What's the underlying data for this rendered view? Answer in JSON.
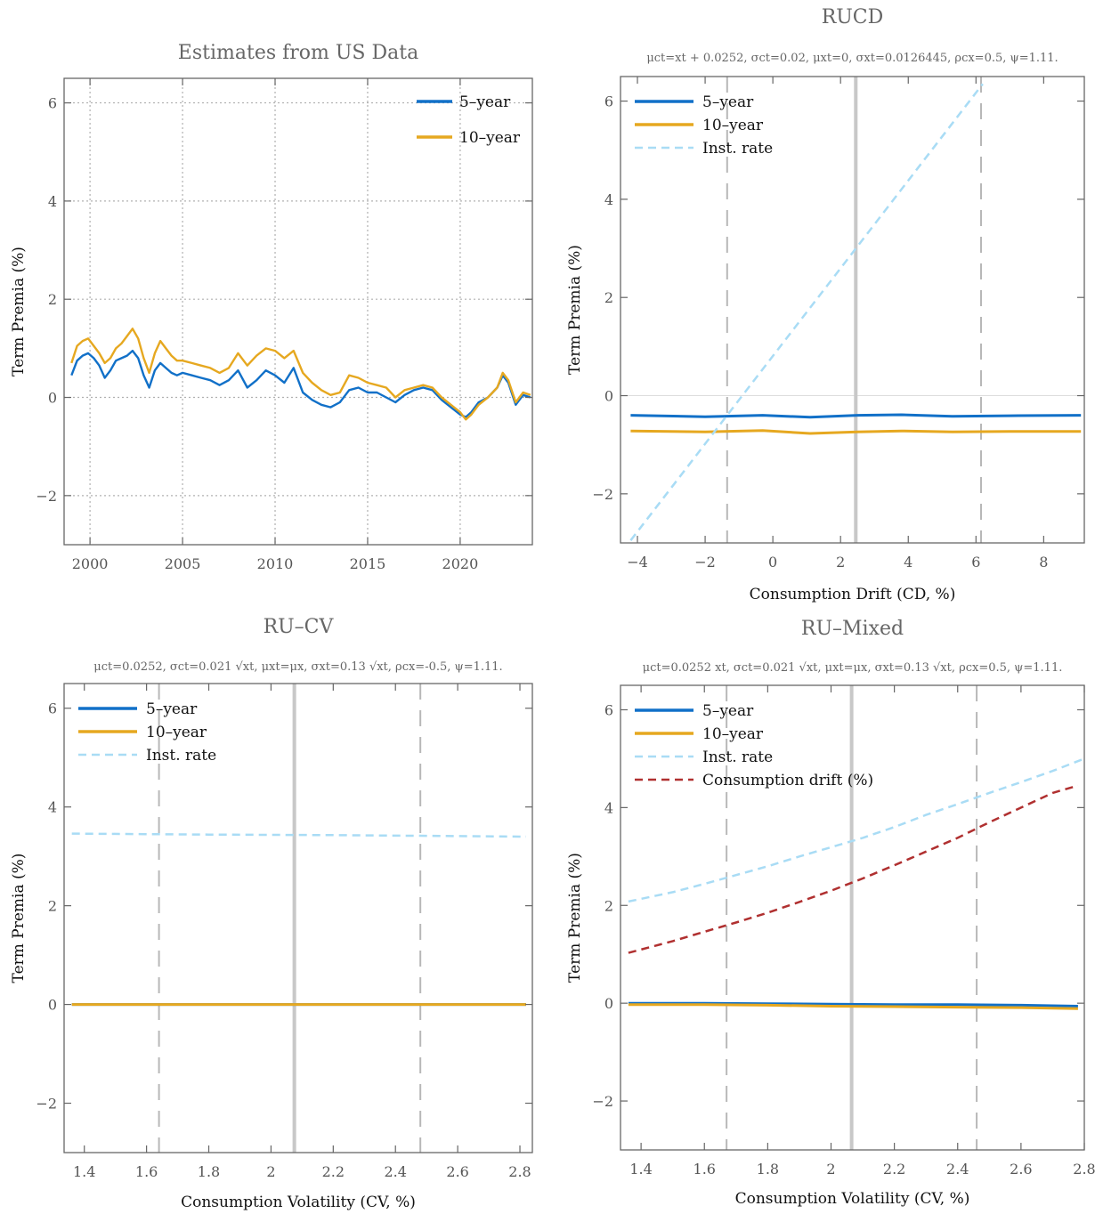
{
  "chart_data": [
    {
      "type": "line",
      "title": "Estimates from US Data",
      "subtitle": "",
      "xlabel": "",
      "ylabel": "Term Premia (%)",
      "xlim": [
        1998.6,
        2023.9
      ],
      "ylim": [
        -3,
        6.5
      ],
      "xticks": [
        2000,
        2005,
        2010,
        2015,
        2020
      ],
      "yticks": [
        -2,
        0,
        2,
        4,
        6
      ],
      "grid": "dotted",
      "legend": "top-right",
      "series": [
        {
          "name": "5–year",
          "color": "#1170c8",
          "x": [
            1999.0,
            1999.3,
            1999.6,
            1999.9,
            2000.2,
            2000.5,
            2000.8,
            2001.1,
            2001.4,
            2001.7,
            2002.0,
            2002.3,
            2002.6,
            2002.9,
            2003.2,
            2003.5,
            2003.8,
            2004.1,
            2004.4,
            2004.7,
            2005.0,
            2005.5,
            2006.0,
            2006.5,
            2007.0,
            2007.5,
            2008.0,
            2008.5,
            2009.0,
            2009.5,
            2010.0,
            2010.5,
            2011.0,
            2011.5,
            2012.0,
            2012.5,
            2013.0,
            2013.5,
            2014.0,
            2014.5,
            2015.0,
            2015.5,
            2016.0,
            2016.5,
            2017.0,
            2017.5,
            2018.0,
            2018.5,
            2019.0,
            2019.5,
            2020.0,
            2020.3,
            2020.6,
            2021.0,
            2021.5,
            2022.0,
            2022.3,
            2022.6,
            2023.0,
            2023.4,
            2023.8
          ],
          "values": [
            0.45,
            0.75,
            0.85,
            0.9,
            0.8,
            0.65,
            0.4,
            0.55,
            0.75,
            0.8,
            0.85,
            0.95,
            0.8,
            0.45,
            0.2,
            0.55,
            0.7,
            0.6,
            0.5,
            0.45,
            0.5,
            0.45,
            0.4,
            0.35,
            0.25,
            0.35,
            0.55,
            0.2,
            0.35,
            0.55,
            0.45,
            0.3,
            0.6,
            0.1,
            -0.05,
            -0.15,
            -0.2,
            -0.1,
            0.15,
            0.2,
            0.1,
            0.1,
            0.0,
            -0.1,
            0.05,
            0.15,
            0.2,
            0.15,
            -0.05,
            -0.2,
            -0.35,
            -0.4,
            -0.3,
            -0.1,
            0.0,
            0.2,
            0.45,
            0.3,
            -0.15,
            0.05,
            0.0
          ]
        },
        {
          "name": "10–year",
          "color": "#e6a820",
          "x": [
            1999.0,
            1999.3,
            1999.6,
            1999.9,
            2000.2,
            2000.5,
            2000.8,
            2001.1,
            2001.4,
            2001.7,
            2002.0,
            2002.3,
            2002.6,
            2002.9,
            2003.2,
            2003.5,
            2003.8,
            2004.1,
            2004.4,
            2004.7,
            2005.0,
            2005.5,
            2006.0,
            2006.5,
            2007.0,
            2007.5,
            2008.0,
            2008.5,
            2009.0,
            2009.5,
            2010.0,
            2010.5,
            2011.0,
            2011.5,
            2012.0,
            2012.5,
            2013.0,
            2013.5,
            2014.0,
            2014.5,
            2015.0,
            2015.5,
            2016.0,
            2016.5,
            2017.0,
            2017.5,
            2018.0,
            2018.5,
            2019.0,
            2019.5,
            2020.0,
            2020.3,
            2020.6,
            2021.0,
            2021.5,
            2022.0,
            2022.3,
            2022.6,
            2023.0,
            2023.4,
            2023.8
          ],
          "values": [
            0.7,
            1.05,
            1.15,
            1.2,
            1.05,
            0.9,
            0.7,
            0.8,
            1.0,
            1.1,
            1.25,
            1.4,
            1.2,
            0.8,
            0.5,
            0.9,
            1.15,
            1.0,
            0.85,
            0.75,
            0.75,
            0.7,
            0.65,
            0.6,
            0.5,
            0.6,
            0.9,
            0.65,
            0.85,
            1.0,
            0.95,
            0.8,
            0.95,
            0.5,
            0.3,
            0.15,
            0.05,
            0.1,
            0.45,
            0.4,
            0.3,
            0.25,
            0.2,
            0.0,
            0.15,
            0.2,
            0.25,
            0.2,
            0.0,
            -0.15,
            -0.3,
            -0.45,
            -0.35,
            -0.15,
            0.0,
            0.2,
            0.5,
            0.35,
            -0.1,
            0.1,
            0.05
          ]
        }
      ]
    },
    {
      "type": "line",
      "title": "RUCD",
      "subtitle": "μct=xt + 0.0252, σct=0.02, μxt=0, σxt=0.0126445, ρcx=0.5, ψ=1.11.",
      "xlabel": "Consumption Drift (CD, %)",
      "ylabel": "Term Premia (%)",
      "xlim": [
        -4.5,
        9.2
      ],
      "ylim": [
        -3,
        6.5
      ],
      "xticks": [
        -4,
        -2,
        0,
        2,
        4,
        6,
        8
      ],
      "yticks": [
        -2,
        0,
        2,
        4,
        6
      ],
      "vlines_dashed": [
        -1.35,
        6.15
      ],
      "vline_solid": 2.45,
      "zero_line": true,
      "legend": "top-left",
      "series": [
        {
          "name": "5–year",
          "color": "#1170c8",
          "style": "solid",
          "x": [
            -4.2,
            -2.0,
            -0.3,
            1.1,
            2.5,
            3.8,
            5.3,
            7.0,
            9.1
          ],
          "values": [
            -0.4,
            -0.43,
            -0.4,
            -0.44,
            -0.4,
            -0.39,
            -0.42,
            -0.41,
            -0.4
          ]
        },
        {
          "name": "10–year",
          "color": "#e6a820",
          "style": "solid",
          "x": [
            -4.2,
            -2.0,
            -0.3,
            1.1,
            2.5,
            3.8,
            5.3,
            7.0,
            9.1
          ],
          "values": [
            -0.72,
            -0.74,
            -0.71,
            -0.77,
            -0.74,
            -0.72,
            -0.74,
            -0.73,
            -0.73
          ]
        },
        {
          "name": "Inst. rate",
          "color": "#a9dcf5",
          "style": "dashed",
          "x": [
            -4.2,
            6.2
          ],
          "values": [
            -2.95,
            6.35
          ]
        }
      ]
    },
    {
      "type": "line",
      "title": "RU–CV",
      "subtitle": "μct=0.0252, σct=0.021 √xt, μxt=μx, σxt=0.13 √xt, ρcx=-0.5, ψ=1.11.",
      "xlabel": "Consumption Volatility (CV, %)",
      "ylabel": "Term Premia (%)",
      "xlim": [
        1.335,
        2.84
      ],
      "ylim": [
        -3,
        6.5
      ],
      "xticks": [
        1.4,
        1.6,
        1.8,
        2.0,
        2.2,
        2.4,
        2.6,
        2.8
      ],
      "yticks": [
        -2,
        0,
        2,
        4,
        6
      ],
      "vlines_dashed": [
        1.64,
        2.48
      ],
      "vline_solid": 2.075,
      "legend": "top-left",
      "series": [
        {
          "name": "5–year",
          "color": "#1170c8",
          "style": "solid",
          "x": [
            1.36,
            2.82
          ],
          "values": [
            0.0,
            0.0
          ]
        },
        {
          "name": "10–year",
          "color": "#e6a820",
          "style": "solid",
          "x": [
            1.36,
            2.82
          ],
          "values": [
            0.0,
            0.0
          ]
        },
        {
          "name": "Inst. rate",
          "color": "#a9dcf5",
          "style": "dashed",
          "x": [
            1.36,
            1.8,
            2.2,
            2.6,
            2.82
          ],
          "values": [
            3.46,
            3.44,
            3.43,
            3.41,
            3.4
          ]
        }
      ]
    },
    {
      "type": "line",
      "title": "RU–Mixed",
      "subtitle": "μct=0.0252 xt, σct=0.021 √xt, μxt=μx, σxt=0.13 √xt, ρcx=0.5, ψ=1.11.",
      "xlabel": "Consumption Volatility (CV, %)",
      "ylabel": "Term Premia (%)",
      "xlim": [
        1.335,
        2.8
      ],
      "ylim": [
        -3,
        6.5
      ],
      "xticks": [
        1.4,
        1.6,
        1.8,
        2.0,
        2.2,
        2.4,
        2.6,
        2.8
      ],
      "yticks": [
        -2,
        0,
        2,
        4,
        6
      ],
      "vlines_dashed": [
        1.67,
        2.46
      ],
      "vline_solid": 2.065,
      "legend": "top-left",
      "series": [
        {
          "name": "5–year",
          "color": "#1170c8",
          "style": "solid",
          "x": [
            1.36,
            1.6,
            1.8,
            2.0,
            2.2,
            2.4,
            2.6,
            2.78
          ],
          "values": [
            0.0,
            0.0,
            -0.01,
            -0.02,
            -0.03,
            -0.03,
            -0.04,
            -0.06
          ]
        },
        {
          "name": "10–year",
          "color": "#e6a820",
          "style": "solid",
          "x": [
            1.36,
            1.6,
            1.8,
            2.0,
            2.2,
            2.4,
            2.6,
            2.78
          ],
          "values": [
            -0.03,
            -0.03,
            -0.04,
            -0.06,
            -0.07,
            -0.08,
            -0.09,
            -0.11
          ]
        },
        {
          "name": "Inst. rate",
          "color": "#a9dcf5",
          "style": "dashed",
          "x": [
            1.36,
            1.5,
            1.6,
            1.7,
            1.8,
            1.9,
            2.0,
            2.1,
            2.2,
            2.3,
            2.4,
            2.5,
            2.6,
            2.7,
            2.8
          ],
          "values": [
            2.08,
            2.27,
            2.44,
            2.62,
            2.8,
            3.0,
            3.19,
            3.38,
            3.6,
            3.85,
            4.07,
            4.3,
            4.52,
            4.75,
            5.0
          ]
        },
        {
          "name": "Consumption drift (%)",
          "color": "#b03030",
          "style": "dashed",
          "x": [
            1.36,
            1.5,
            1.6,
            1.7,
            1.8,
            1.9,
            2.0,
            2.1,
            2.2,
            2.3,
            2.4,
            2.5,
            2.6,
            2.7,
            2.78
          ],
          "values": [
            1.03,
            1.27,
            1.46,
            1.65,
            1.85,
            2.07,
            2.3,
            2.55,
            2.82,
            3.1,
            3.38,
            3.7,
            4.0,
            4.3,
            4.45
          ]
        }
      ]
    }
  ]
}
